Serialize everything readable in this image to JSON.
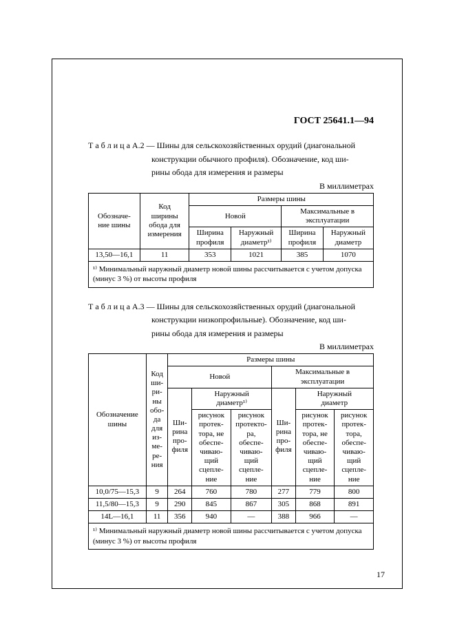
{
  "document": {
    "id": "ГОСТ 25641.1—94",
    "page_number": "17",
    "background_color": "#ffffff",
    "text_color": "#000000",
    "border_color": "#000000"
  },
  "tableA2": {
    "caption_label": "Т а б л и ц а  А.2 — ",
    "caption_text": "Шины для сельскохозяйственных орудий (диагональной конструкции обычного профиля). Обозначение, код ширины обода для измерения и размеры",
    "units": "В миллиметрах",
    "headers": {
      "c1": "Обозначе-\nние шины",
      "c2": "Код\nширины\nобода для\nизмерения",
      "g1": "Размеры шины",
      "g2a": "Новой",
      "g2b": "Максимальные в\nэксплуатации",
      "h1": "Ширина\nпрофиля",
      "h2": "Наружный\nдиаметр¹⁾",
      "h3": "Ширина\nпрофиля",
      "h4": "Наружный\nдиаметр"
    },
    "rows": [
      {
        "c1": "13,50—16,1",
        "c2": "11",
        "v1": "353",
        "v2": "1021",
        "v3": "385",
        "v4": "1070"
      }
    ],
    "footnote": "¹⁾ Минимальный наружный диаметр новой шины рассчитывается с учетом допуска (минус 3 %) от высоты профиля"
  },
  "tableA3": {
    "caption_label": "Т а б л и ц а  А.3 — ",
    "caption_text": "Шины для сельскохозяйственных орудий (диагональной конструкции низкопрофильные). Обозначение, код ширины обода для измерения и размеры",
    "units": "В миллиметрах",
    "headers": {
      "c1": "Обозначение\nшины",
      "c2": "Код\nши-\nри-\nны\nобо-\nда\nдля\nиз-\nме-\nре-\nния",
      "g1": "Размеры шины",
      "g2a": "Новой",
      "g2b": "Максимальные в\nэксплуатации",
      "sh": "Ши-\nрина\nпро-\nфиля",
      "nd": "Наружный\nдиаметр¹⁾",
      "nd2": "Наружный\nдиаметр",
      "p1": "рисунок\nпротек-\nтора, не\nобеспе-\nчиваю-\nщий\nсцепле-\nние",
      "p2": "рисунок\nпротекто-\nра,\nобеспе-\nчиваю-\nщий\nсцепле-\nние",
      "p3": "рисунок\nпротек-\nтора, не\nобеспе-\nчиваю-\nщий\nсцепле-\nние",
      "p4": "рисунок\nпротек-\nтора,\nобеспе-\nчиваю-\nщий\nсцепле-\nние"
    },
    "rows": [
      {
        "c1": "10,0/75—15,3",
        "c2": "9",
        "v1": "264",
        "v2": "760",
        "v3": "780",
        "v4": "277",
        "v5": "779",
        "v6": "800"
      },
      {
        "c1": "11,5/80—15,3",
        "c2": "9",
        "v1": "290",
        "v2": "845",
        "v3": "867",
        "v4": "305",
        "v5": "868",
        "v6": "891"
      },
      {
        "c1": "14L—16,1",
        "c2": "11",
        "v1": "356",
        "v2": "940",
        "v3": "—",
        "v4": "388",
        "v5": "966",
        "v6": "—"
      }
    ],
    "footnote": "¹⁾ Минимальный наружный диаметр новой шины рассчитывается с учетом допуска (минус 3 %) от высоты профиля"
  }
}
